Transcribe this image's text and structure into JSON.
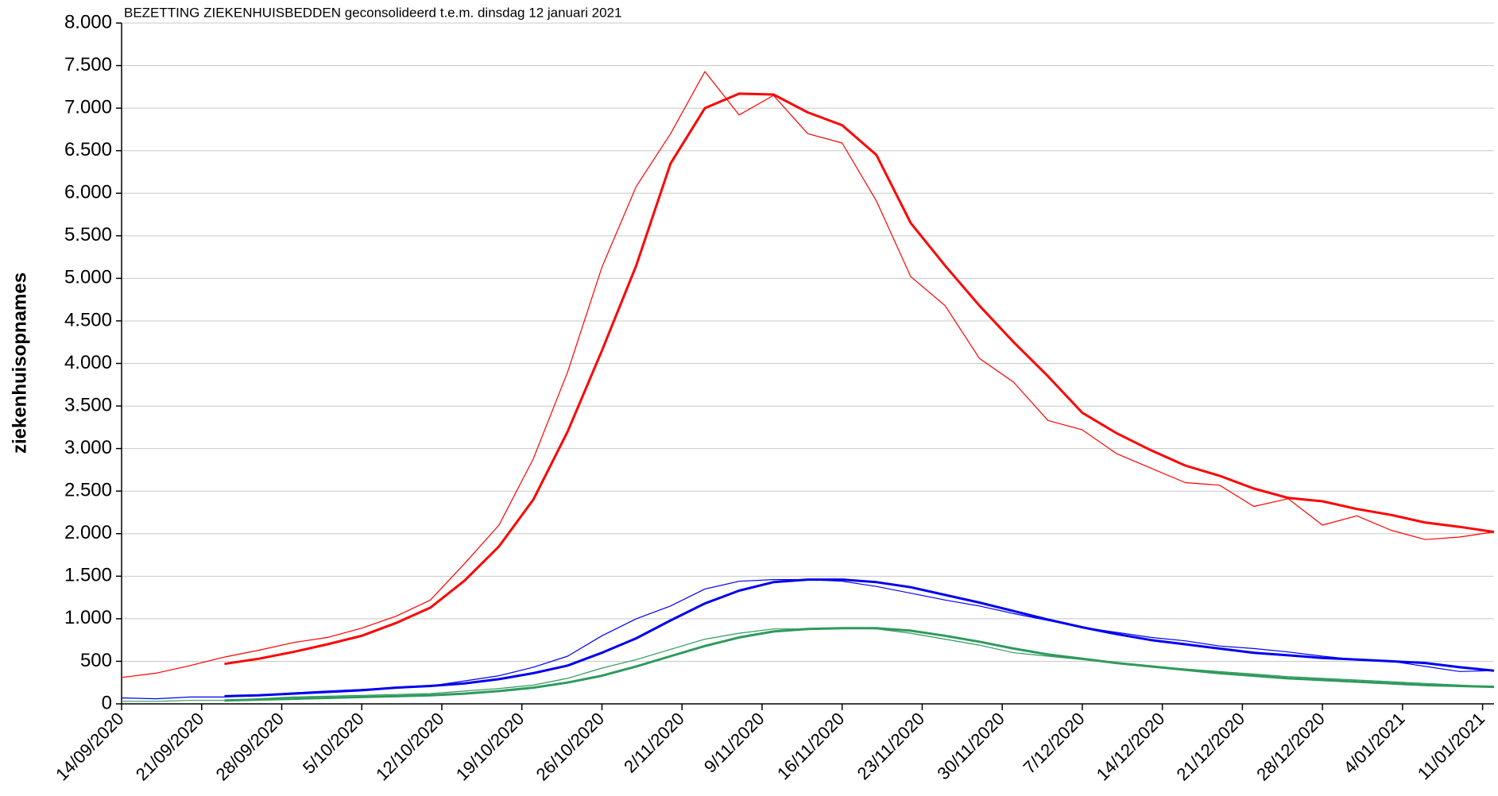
{
  "chart_data": {
    "type": "line",
    "title": "BEZETTING ZIEKENHUISBEDDEN geconsolideerd t.e.m. dinsdag 12 januari 2021",
    "y_label": "ziekenhuisopnames",
    "x": [
      "14/09/2020",
      "17/09/2020",
      "20/09/2020",
      "23/09/2020",
      "26/09/2020",
      "29/09/2020",
      "2/10/2020",
      "5/10/2020",
      "8/10/2020",
      "11/10/2020",
      "14/10/2020",
      "17/10/2020",
      "20/10/2020",
      "23/10/2020",
      "26/10/2020",
      "29/10/2020",
      "1/11/2020",
      "4/11/2020",
      "7/11/2020",
      "10/11/2020",
      "13/11/2020",
      "16/11/2020",
      "19/11/2020",
      "22/11/2020",
      "25/11/2020",
      "28/11/2020",
      "1/12/2020",
      "4/12/2020",
      "7/12/2020",
      "10/12/2020",
      "13/12/2020",
      "16/12/2020",
      "19/12/2020",
      "22/12/2020",
      "25/12/2020",
      "28/12/2020",
      "31/12/2020",
      "3/01/2021",
      "6/01/2021",
      "9/01/2021",
      "12/01/2021"
    ],
    "series": [
      {
        "color": "#ff0000",
        "line_width": 1.2,
        "values": [
          310,
          360,
          450,
          550,
          630,
          720,
          780,
          890,
          1030,
          1220,
          1650,
          2100,
          2880,
          3900,
          5130,
          6080,
          6700,
          7430,
          6920,
          7150,
          6700,
          6590,
          5910,
          5020,
          4680,
          4060,
          3780,
          3330,
          3220,
          2940,
          2770,
          2600,
          2570,
          2320,
          2410,
          2100,
          2210,
          2040,
          1930,
          1960,
          2020
        ]
      },
      {
        "color": "#ff0000",
        "line_width": 3,
        "values": [
          null,
          null,
          null,
          470,
          530,
          610,
          700,
          800,
          950,
          1130,
          1450,
          1850,
          2400,
          3200,
          4150,
          5150,
          6350,
          7000,
          7170,
          7160,
          6950,
          6800,
          6450,
          5650,
          5150,
          4680,
          4250,
          3850,
          3420,
          3180,
          2980,
          2800,
          2680,
          2530,
          2420,
          2380,
          2290,
          2220,
          2130,
          2080,
          2020
        ]
      },
      {
        "color": "#0000ee",
        "line_width": 1.2,
        "values": [
          70,
          60,
          80,
          80,
          100,
          130,
          150,
          170,
          190,
          210,
          270,
          330,
          430,
          560,
          800,
          1000,
          1150,
          1350,
          1440,
          1460,
          1460,
          1440,
          1380,
          1300,
          1220,
          1150,
          1060,
          980,
          900,
          840,
          780,
          740,
          680,
          650,
          610,
          560,
          520,
          500,
          440,
          380,
          390
        ]
      },
      {
        "color": "#0000ee",
        "line_width": 3,
        "values": [
          null,
          null,
          null,
          90,
          100,
          120,
          140,
          160,
          190,
          210,
          240,
          290,
          360,
          450,
          600,
          770,
          980,
          1180,
          1330,
          1430,
          1460,
          1460,
          1430,
          1370,
          1280,
          1190,
          1090,
          990,
          900,
          820,
          750,
          700,
          650,
          600,
          570,
          540,
          520,
          500,
          480,
          430,
          390
        ]
      },
      {
        "color": "#2e9a5c",
        "line_width": 1.2,
        "values": [
          30,
          30,
          40,
          40,
          60,
          80,
          90,
          100,
          110,
          120,
          150,
          180,
          220,
          300,
          420,
          520,
          640,
          760,
          830,
          880,
          880,
          890,
          880,
          830,
          760,
          690,
          600,
          560,
          520,
          480,
          440,
          410,
          380,
          350,
          320,
          300,
          280,
          260,
          240,
          220,
          200
        ]
      },
      {
        "color": "#2e9a5c",
        "line_width": 3,
        "values": [
          null,
          null,
          null,
          40,
          50,
          60,
          70,
          80,
          90,
          100,
          120,
          150,
          190,
          250,
          330,
          440,
          560,
          680,
          780,
          850,
          880,
          890,
          890,
          860,
          800,
          730,
          650,
          580,
          530,
          480,
          440,
          400,
          360,
          330,
          300,
          280,
          260,
          240,
          220,
          210,
          200
        ]
      }
    ],
    "xlim": [
      "14/09/2020",
      "12/01/2021"
    ],
    "xticks": [
      "14/09/2020",
      "21/09/2020",
      "28/09/2020",
      "5/10/2020",
      "12/10/2020",
      "19/10/2020",
      "26/10/2020",
      "2/11/2020",
      "9/11/2020",
      "16/11/2020",
      "23/11/2020",
      "30/11/2020",
      "7/12/2020",
      "14/12/2020",
      "21/12/2020",
      "28/12/2020",
      "4/01/2021",
      "11/01/2021"
    ],
    "ylim": [
      0,
      8000
    ],
    "yticks": [
      0,
      500,
      {
        "value": 1000,
        "label": "1.000"
      },
      {
        "value": 1500,
        "label": "1.500"
      },
      {
        "value": 2000,
        "label": "2.000"
      },
      {
        "value": 2500,
        "label": "2.500"
      },
      {
        "value": 3000,
        "label": "3.000"
      },
      {
        "value": 3500,
        "label": "3.500"
      },
      {
        "value": 4000,
        "label": "4.000"
      },
      {
        "value": 4500,
        "label": "4.500"
      },
      {
        "value": 5000,
        "label": "5.000"
      },
      {
        "value": 5500,
        "label": "5.500"
      },
      {
        "value": 6000,
        "label": "6.000"
      },
      {
        "value": 6500,
        "label": "6.500"
      },
      {
        "value": 7000,
        "label": "7.000"
      },
      {
        "value": 7500,
        "label": "7.500"
      },
      {
        "value": 8000,
        "label": "8.000"
      }
    ],
    "grid": true
  }
}
